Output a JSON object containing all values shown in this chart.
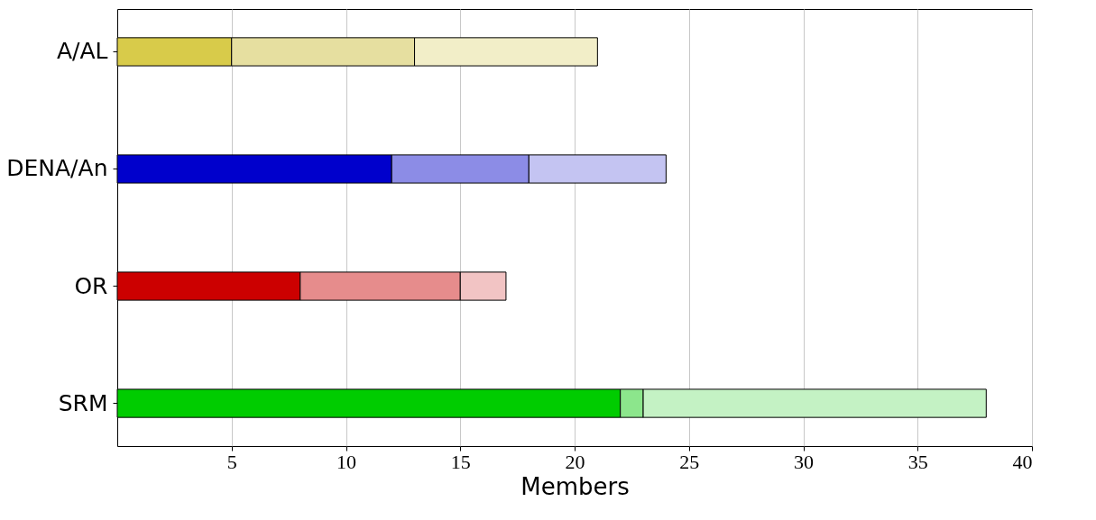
{
  "chart_data": {
    "type": "bar",
    "orientation": "horizontal",
    "stacked": true,
    "xlabel": "Members",
    "categories": [
      "A/AL",
      "DENA/An",
      "OR",
      "SRM"
    ],
    "series": [
      {
        "colors": [
          "#d8cb4a",
          "#0000cc",
          "#cc0000",
          "#00cc00"
        ],
        "values": [
          5,
          12,
          8,
          22
        ]
      },
      {
        "colors": [
          "#e6dfa0",
          "#8c8ce6",
          "#e68c8c",
          "#8ce68c"
        ],
        "values": [
          8,
          6,
          7,
          1
        ]
      },
      {
        "colors": [
          "#f2eec8",
          "#c4c4f2",
          "#f2c4c4",
          "#c4f2c4"
        ],
        "values": [
          8,
          6,
          2,
          15
        ]
      }
    ],
    "xlim": [
      0,
      40
    ],
    "xticks": [
      5,
      10,
      15,
      20,
      25,
      30,
      35,
      40
    ],
    "grid": "x"
  }
}
